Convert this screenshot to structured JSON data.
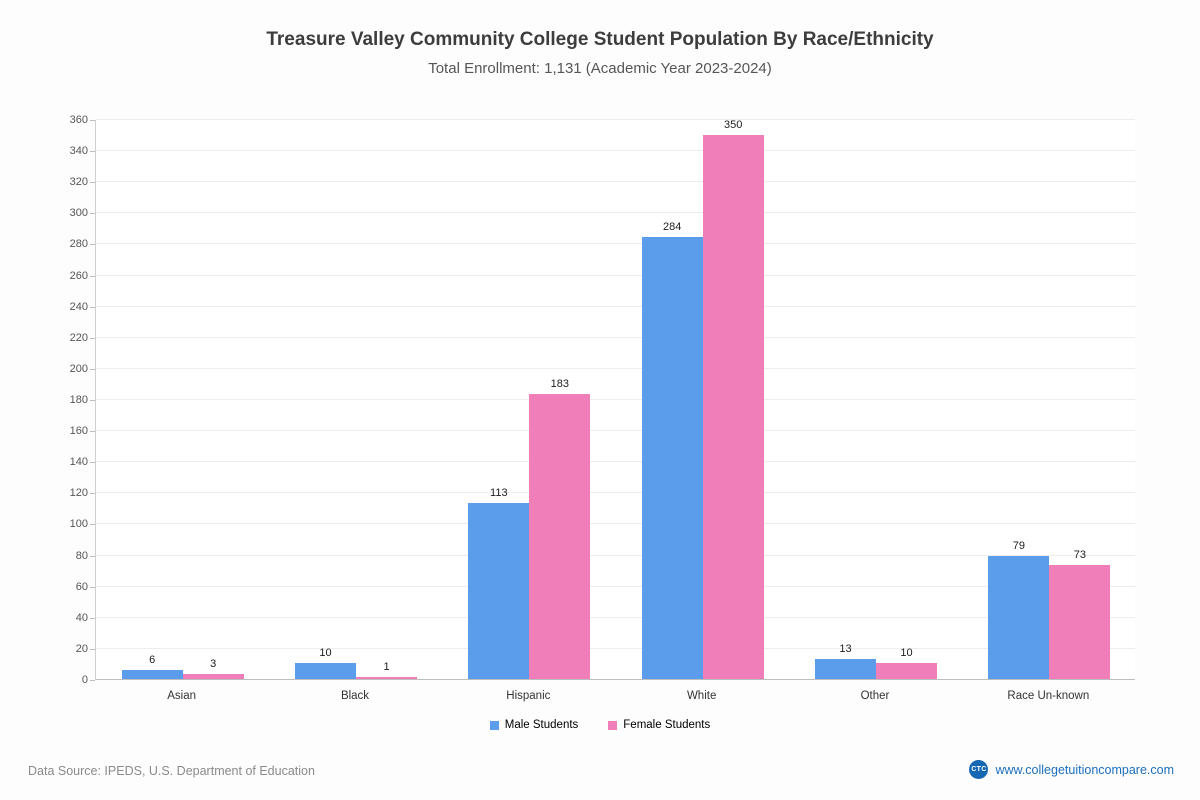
{
  "header": {
    "title": "Treasure Valley Community College Student Population By Race/Ethnicity",
    "subtitle": "Total Enrollment: 1,131 (Academic Year 2023-2024)"
  },
  "chart_data": {
    "type": "bar",
    "title": "Treasure Valley Community College Student Population By Race/Ethnicity",
    "subtitle": "Total Enrollment: 1,131 (Academic Year 2023-2024)",
    "categories": [
      "Asian",
      "Black",
      "Hispanic",
      "White",
      "Other",
      "Race Un-known"
    ],
    "series": [
      {
        "name": "Male Students",
        "color": "#5b9ceb",
        "values": [
          6,
          10,
          113,
          284,
          13,
          79
        ]
      },
      {
        "name": "Female Students",
        "color": "#f07fb9",
        "values": [
          3,
          1,
          183,
          350,
          10,
          73
        ]
      }
    ],
    "xlabel": "",
    "ylabel": "",
    "ylim": [
      0,
      360
    ],
    "ytick_step": 20,
    "grid": true,
    "legend_position": "bottom"
  },
  "footer": {
    "source": "Data Source: IPEDS, U.S. Department of Education",
    "logo": "CTC",
    "website": "www.collegetuitioncompare.com"
  }
}
